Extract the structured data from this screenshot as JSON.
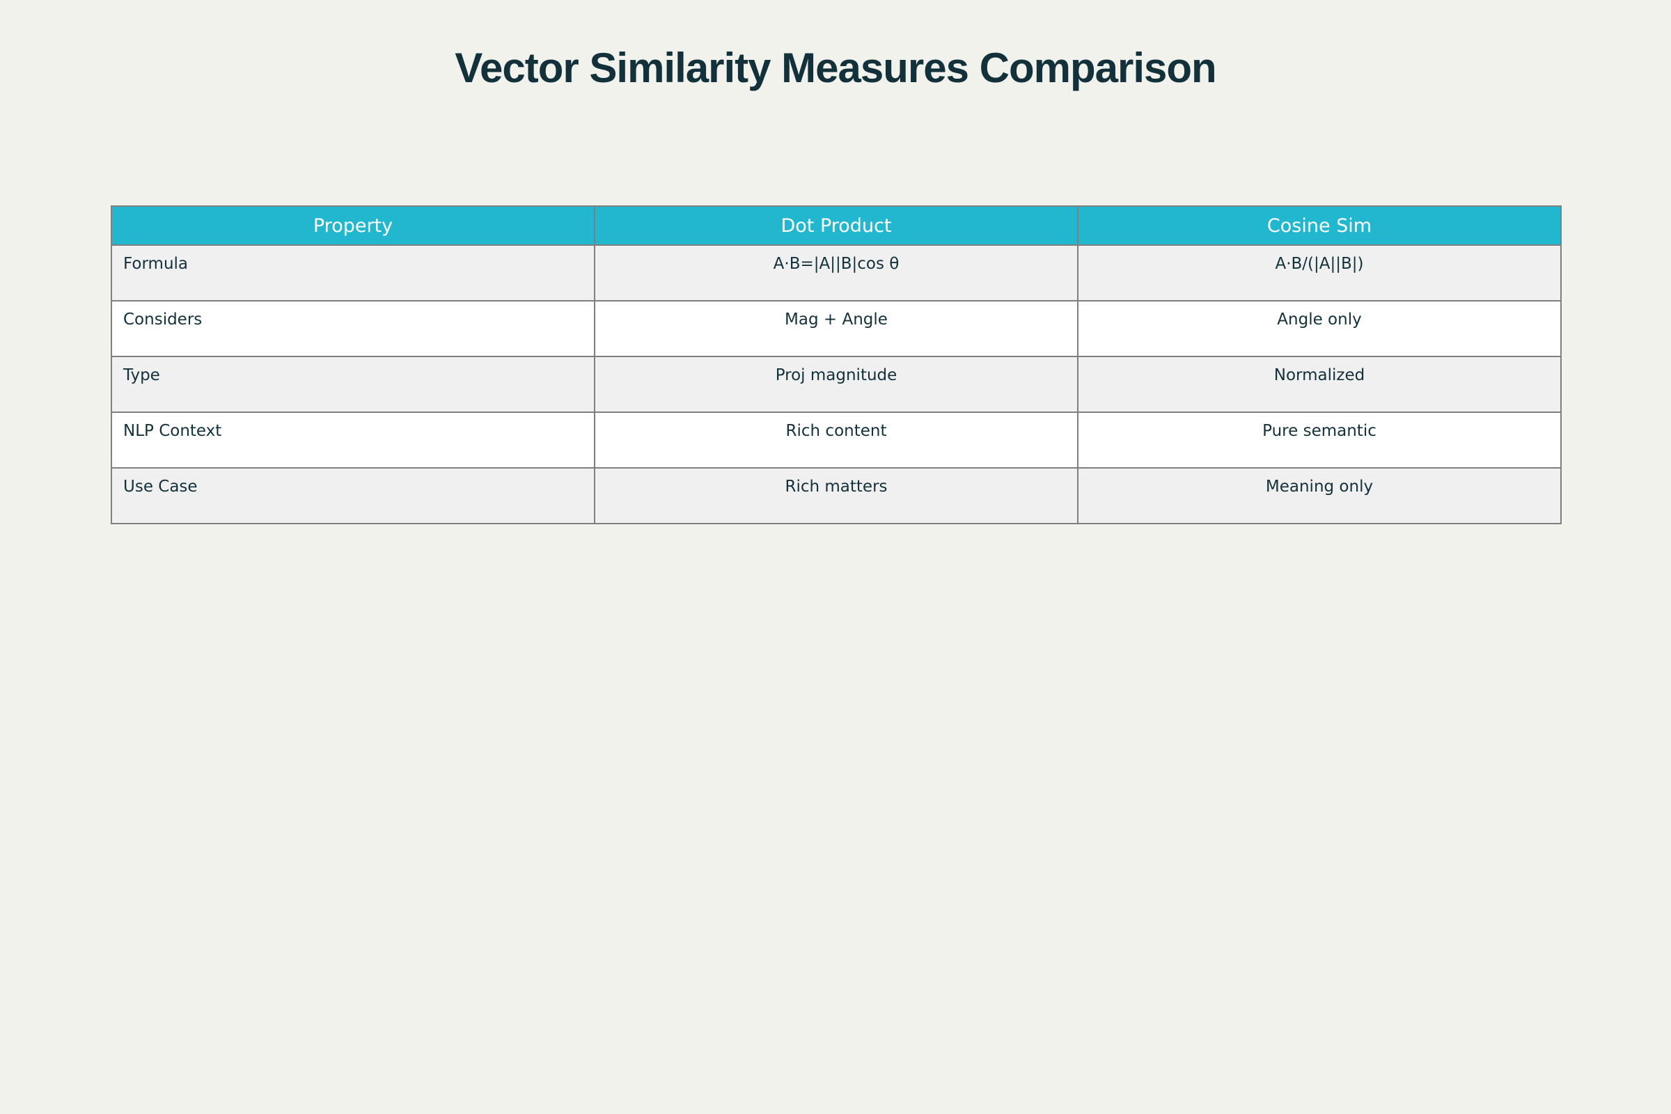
{
  "chart_data": {
    "type": "table",
    "title": "Vector Similarity Measures Comparison",
    "columns": [
      "Property",
      "Dot Product",
      "Cosine Sim"
    ],
    "rows": [
      [
        "Formula",
        "A·B=|A||B|cos θ",
        "A·B/(|A||B|)"
      ],
      [
        "Considers",
        "Mag + Angle",
        "Angle only"
      ],
      [
        "Type",
        "Proj magnitude",
        "Normalized"
      ],
      [
        "NLP Context",
        "Rich content",
        "Pure semantic"
      ],
      [
        "Use Case",
        "Rich matters",
        "Meaning only"
      ]
    ],
    "header_color": "#21b8cf",
    "background_color": "#f2f2ed"
  }
}
